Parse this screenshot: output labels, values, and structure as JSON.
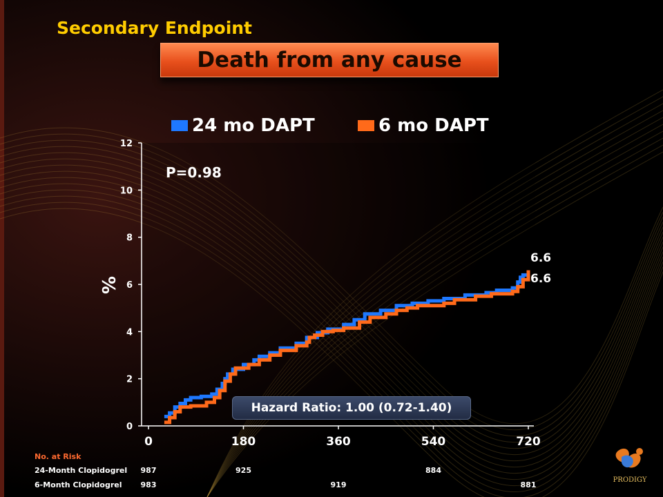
{
  "section_title": "Secondary Endpoint",
  "chart_data": {
    "type": "line",
    "title": "Death from any cause",
    "ylabel": "%",
    "xlabel": "",
    "xlim": [
      0,
      720
    ],
    "ylim": [
      0,
      12
    ],
    "x_ticks": [
      0,
      180,
      360,
      540,
      720
    ],
    "y_ticks": [
      0,
      2,
      4,
      6,
      8,
      10,
      12
    ],
    "legend_position": "top",
    "grid": false,
    "series": [
      {
        "name": "24 mo DAPT",
        "color": "#1e78ff",
        "end_label": "6.6",
        "points": [
          [
            30,
            0.4
          ],
          [
            40,
            0.55
          ],
          [
            50,
            0.8
          ],
          [
            60,
            0.95
          ],
          [
            70,
            1.1
          ],
          [
            80,
            1.2
          ],
          [
            100,
            1.25
          ],
          [
            120,
            1.35
          ],
          [
            130,
            1.55
          ],
          [
            140,
            1.8
          ],
          [
            145,
            2.0
          ],
          [
            150,
            2.2
          ],
          [
            160,
            2.4
          ],
          [
            180,
            2.6
          ],
          [
            200,
            2.8
          ],
          [
            210,
            2.95
          ],
          [
            230,
            3.1
          ],
          [
            250,
            3.3
          ],
          [
            280,
            3.5
          ],
          [
            300,
            3.75
          ],
          [
            320,
            3.95
          ],
          [
            340,
            4.1
          ],
          [
            370,
            4.3
          ],
          [
            390,
            4.5
          ],
          [
            410,
            4.75
          ],
          [
            440,
            4.9
          ],
          [
            470,
            5.1
          ],
          [
            500,
            5.2
          ],
          [
            530,
            5.3
          ],
          [
            560,
            5.4
          ],
          [
            600,
            5.55
          ],
          [
            640,
            5.65
          ],
          [
            660,
            5.75
          ],
          [
            690,
            5.85
          ],
          [
            700,
            6.1
          ],
          [
            705,
            6.3
          ],
          [
            710,
            6.4
          ],
          [
            720,
            6.6
          ]
        ]
      },
      {
        "name": "6 mo DAPT",
        "color": "#ff6a1a",
        "end_label": "6.6",
        "points": [
          [
            30,
            0.15
          ],
          [
            40,
            0.35
          ],
          [
            50,
            0.6
          ],
          [
            60,
            0.8
          ],
          [
            80,
            0.85
          ],
          [
            110,
            1.0
          ],
          [
            125,
            1.2
          ],
          [
            135,
            1.5
          ],
          [
            145,
            1.9
          ],
          [
            155,
            2.2
          ],
          [
            165,
            2.45
          ],
          [
            190,
            2.6
          ],
          [
            210,
            2.8
          ],
          [
            230,
            3.0
          ],
          [
            250,
            3.2
          ],
          [
            280,
            3.4
          ],
          [
            300,
            3.55
          ],
          [
            305,
            3.75
          ],
          [
            315,
            3.85
          ],
          [
            330,
            4.0
          ],
          [
            350,
            4.05
          ],
          [
            370,
            4.15
          ],
          [
            400,
            4.4
          ],
          [
            420,
            4.6
          ],
          [
            450,
            4.75
          ],
          [
            470,
            4.9
          ],
          [
            490,
            5.0
          ],
          [
            510,
            5.1
          ],
          [
            560,
            5.2
          ],
          [
            580,
            5.35
          ],
          [
            620,
            5.5
          ],
          [
            650,
            5.6
          ],
          [
            690,
            5.7
          ],
          [
            700,
            5.9
          ],
          [
            710,
            6.2
          ],
          [
            720,
            6.6
          ]
        ]
      }
    ],
    "annotations": {
      "p_value": "P=0.98",
      "hazard_ratio": "Hazard Ratio: 1.00 (0.72-1.40)"
    }
  },
  "risk_table": {
    "header": "No. at Risk",
    "rows": [
      {
        "label": "24-Month Clopidogrel",
        "values": [
          {
            "x": 0,
            "value": "987"
          },
          {
            "x": 180,
            "value": "925"
          },
          {
            "x": 540,
            "value": "884"
          }
        ]
      },
      {
        "label": "6-Month Clopidogrel",
        "values": [
          {
            "x": 0,
            "value": "983"
          },
          {
            "x": 360,
            "value": "919"
          },
          {
            "x": 720,
            "value": "881"
          }
        ]
      }
    ]
  },
  "logo_text": "PRODIGY"
}
